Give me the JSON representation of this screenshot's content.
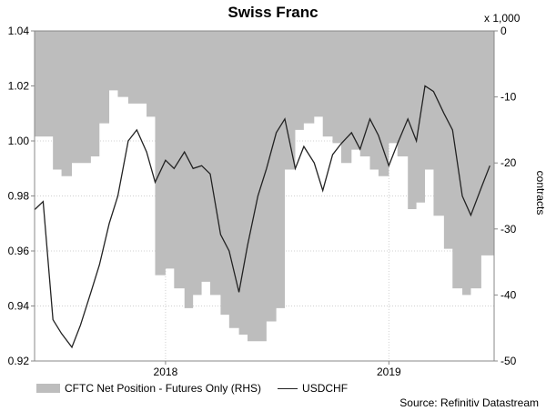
{
  "chart_data": {
    "type": "line",
    "title": "Swiss Franc",
    "x_ticks": [
      "2018",
      "2019"
    ],
    "left_axis": {
      "range": [
        0.92,
        1.04
      ],
      "ticks": [
        "0.92",
        "0.94",
        "0.96",
        "0.98",
        "1.00",
        "1.02",
        "1.04"
      ]
    },
    "right_axis": {
      "range": [
        -50,
        0
      ],
      "ticks": [
        "0",
        "-10",
        "-20",
        "-30",
        "-40",
        "-50"
      ],
      "label": "contracts",
      "unit": "x 1,000"
    },
    "grid": true,
    "legend_position": "bottom-left",
    "series": [
      {
        "name": "CFTC Net Position - Futures Only (RHS)",
        "kind": "area",
        "axis": "right",
        "color": "#bdbdbd",
        "x": [
          "2017-06",
          "2017-07",
          "2017-07-15",
          "2017-08",
          "2017-08-15",
          "2017-09",
          "2017-09-15",
          "2017-10",
          "2017-10-15",
          "2017-11",
          "2017-11-15",
          "2017-12",
          "2017-12-15",
          "2018-01",
          "2018-01-15",
          "2018-02",
          "2018-02-15",
          "2018-03",
          "2018-03-15",
          "2018-04",
          "2018-04-15",
          "2018-05",
          "2018-05-15",
          "2018-06",
          "2018-06-15",
          "2018-07",
          "2018-07-15",
          "2018-08",
          "2018-08-15",
          "2018-09",
          "2018-09-15",
          "2018-10",
          "2018-10-15",
          "2018-11",
          "2018-11-15",
          "2018-12",
          "2018-12-15",
          "2019-01",
          "2019-01-15",
          "2019-02",
          "2019-02-15",
          "2019-03",
          "2019-03-15",
          "2019-04",
          "2019-04-15",
          "2019-05",
          "2019-05-15",
          "2019-06"
        ],
        "values": [
          -16,
          -21,
          -22,
          -20,
          -20,
          -19,
          -14,
          -9,
          -10,
          -11,
          -11,
          -13,
          -37,
          -36,
          -39,
          -42,
          -40,
          -38,
          -40,
          -43,
          -45,
          -46,
          -47,
          -47,
          -44,
          -42,
          -21,
          -15,
          -14,
          -13,
          -16,
          -17,
          -20,
          -18,
          -19,
          -21,
          -22,
          -17,
          -19,
          -27,
          -26,
          -21,
          -28,
          -33,
          -39,
          -40,
          -39,
          -34
        ]
      },
      {
        "name": "USDCHF",
        "kind": "line",
        "axis": "left",
        "color": "#222222",
        "x": [
          "2017-06",
          "2017-06-15",
          "2017-07",
          "2017-07-15",
          "2017-08",
          "2017-08-15",
          "2017-09",
          "2017-09-15",
          "2017-10",
          "2017-10-15",
          "2017-11",
          "2017-11-15",
          "2017-12",
          "2017-12-15",
          "2018-01",
          "2018-01-15",
          "2018-02",
          "2018-02-15",
          "2018-03",
          "2018-03-15",
          "2018-04",
          "2018-04-15",
          "2018-05",
          "2018-05-15",
          "2018-06",
          "2018-06-15",
          "2018-07",
          "2018-07-15",
          "2018-08",
          "2018-08-15",
          "2018-09",
          "2018-09-15",
          "2018-10",
          "2018-10-15",
          "2018-11",
          "2018-11-15",
          "2018-12",
          "2018-12-15",
          "2019-01",
          "2019-01-15",
          "2019-02",
          "2019-02-15",
          "2019-03",
          "2019-03-15",
          "2019-04",
          "2019-04-15",
          "2019-05",
          "2019-05-15",
          "2019-06",
          "2019-06-15"
        ],
        "values": [
          0.975,
          0.978,
          0.935,
          0.93,
          0.925,
          0.933,
          0.945,
          0.955,
          0.97,
          0.98,
          1.0,
          1.004,
          0.996,
          0.985,
          0.993,
          0.99,
          0.996,
          0.99,
          0.991,
          0.988,
          0.966,
          0.96,
          0.945,
          0.962,
          0.98,
          0.99,
          1.003,
          1.008,
          0.99,
          0.998,
          0.992,
          0.982,
          0.995,
          0.999,
          1.003,
          0.997,
          1.008,
          1.002,
          0.991,
          0.999,
          1.008,
          1.0,
          1.02,
          1.018,
          1.01,
          1.004,
          0.98,
          0.973,
          0.983,
          0.991
        ]
      }
    ]
  },
  "source": "Source: Refinitiv Datastream"
}
